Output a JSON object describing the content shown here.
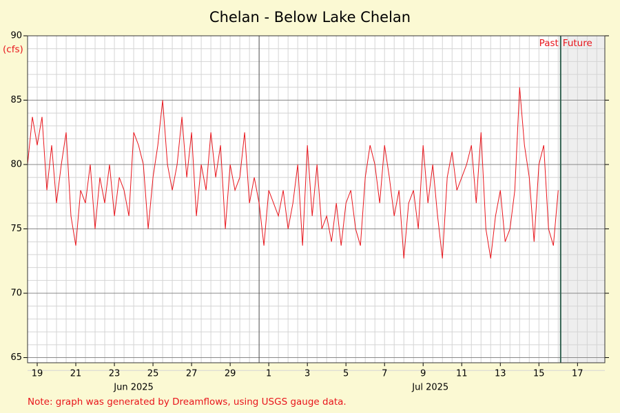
{
  "chart_data": {
    "type": "line",
    "title": "Chelan - Below Lake Chelan",
    "y_unit": "(cfs)",
    "color": "#e8141b",
    "grid": true,
    "ylim": [
      64.6,
      90
    ],
    "yticks": [
      65,
      70,
      75,
      80,
      85,
      90
    ],
    "xlim": [
      "2025-06-19T00:00",
      "2025-07-18T22:00"
    ],
    "xticks": [
      {
        "value": "2025-06-19T12:00",
        "label": "19"
      },
      {
        "value": "2025-06-21T12:00",
        "label": "21"
      },
      {
        "value": "2025-06-23T12:00",
        "label": "23"
      },
      {
        "value": "2025-06-25T12:00",
        "label": "25"
      },
      {
        "value": "2025-06-27T12:00",
        "label": "27"
      },
      {
        "value": "2025-06-29T12:00",
        "label": "29"
      },
      {
        "value": "2025-07-01T12:00",
        "label": "1"
      },
      {
        "value": "2025-07-03T12:00",
        "label": "3"
      },
      {
        "value": "2025-07-05T12:00",
        "label": "5"
      },
      {
        "value": "2025-07-07T12:00",
        "label": "7"
      },
      {
        "value": "2025-07-09T12:00",
        "label": "9"
      },
      {
        "value": "2025-07-11T12:00",
        "label": "11"
      },
      {
        "value": "2025-07-13T12:00",
        "label": "13"
      },
      {
        "value": "2025-07-15T12:00",
        "label": "15"
      },
      {
        "value": "2025-07-17T12:00",
        "label": "17"
      }
    ],
    "month_labels": [
      {
        "value": "2025-06-24T12:00",
        "label": "Jun 2025"
      },
      {
        "value": "2025-07-09T21:00",
        "label": "Jul 2025"
      }
    ],
    "month_start": "2025-07-01T00:00",
    "now": "2025-07-16T15:00",
    "past_label": "Past",
    "future_label": "Future",
    "note": "Note: graph was generated by Dreamflows, using USGS gauge data.",
    "x": [
      "2025-06-19T00:00",
      "2025-06-19T06:00",
      "2025-06-19T12:00",
      "2025-06-19T18:00",
      "2025-06-20T00:00",
      "2025-06-20T06:00",
      "2025-06-20T12:00",
      "2025-06-20T18:00",
      "2025-06-21T00:00",
      "2025-06-21T06:00",
      "2025-06-21T12:00",
      "2025-06-21T18:00",
      "2025-06-22T00:00",
      "2025-06-22T06:00",
      "2025-06-22T12:00",
      "2025-06-22T18:00",
      "2025-06-23T00:00",
      "2025-06-23T06:00",
      "2025-06-23T12:00",
      "2025-06-23T18:00",
      "2025-06-24T00:00",
      "2025-06-24T06:00",
      "2025-06-24T12:00",
      "2025-06-24T18:00",
      "2025-06-25T00:00",
      "2025-06-25T06:00",
      "2025-06-25T12:00",
      "2025-06-25T18:00",
      "2025-06-26T00:00",
      "2025-06-26T06:00",
      "2025-06-26T12:00",
      "2025-06-26T18:00",
      "2025-06-27T00:00",
      "2025-06-27T06:00",
      "2025-06-27T12:00",
      "2025-06-27T18:00",
      "2025-06-28T00:00",
      "2025-06-28T06:00",
      "2025-06-28T12:00",
      "2025-06-28T18:00",
      "2025-06-29T00:00",
      "2025-06-29T06:00",
      "2025-06-29T12:00",
      "2025-06-29T18:00",
      "2025-06-30T00:00",
      "2025-06-30T06:00",
      "2025-06-30T12:00",
      "2025-06-30T18:00",
      "2025-07-01T00:00",
      "2025-07-01T06:00",
      "2025-07-01T12:00",
      "2025-07-01T18:00",
      "2025-07-02T00:00",
      "2025-07-02T06:00",
      "2025-07-02T12:00",
      "2025-07-02T18:00",
      "2025-07-03T00:00",
      "2025-07-03T06:00",
      "2025-07-03T12:00",
      "2025-07-03T18:00",
      "2025-07-04T00:00",
      "2025-07-04T06:00",
      "2025-07-04T12:00",
      "2025-07-04T18:00",
      "2025-07-05T00:00",
      "2025-07-05T06:00",
      "2025-07-05T12:00",
      "2025-07-05T18:00",
      "2025-07-06T00:00",
      "2025-07-06T06:00",
      "2025-07-06T12:00",
      "2025-07-06T18:00",
      "2025-07-07T00:00",
      "2025-07-07T06:00",
      "2025-07-07T12:00",
      "2025-07-07T18:00",
      "2025-07-08T00:00",
      "2025-07-08T06:00",
      "2025-07-08T12:00",
      "2025-07-08T18:00",
      "2025-07-09T00:00",
      "2025-07-09T06:00",
      "2025-07-09T12:00",
      "2025-07-09T18:00",
      "2025-07-10T00:00",
      "2025-07-10T06:00",
      "2025-07-10T12:00",
      "2025-07-10T18:00",
      "2025-07-11T00:00",
      "2025-07-11T06:00",
      "2025-07-11T12:00",
      "2025-07-11T18:00",
      "2025-07-12T00:00",
      "2025-07-12T06:00",
      "2025-07-12T12:00",
      "2025-07-12T18:00",
      "2025-07-13T00:00",
      "2025-07-13T06:00",
      "2025-07-13T12:00",
      "2025-07-13T18:00",
      "2025-07-14T00:00",
      "2025-07-14T06:00",
      "2025-07-14T12:00",
      "2025-07-14T18:00",
      "2025-07-15T00:00",
      "2025-07-15T06:00",
      "2025-07-15T12:00",
      "2025-07-15T18:00",
      "2025-07-16T00:00",
      "2025-07-16T06:00",
      "2025-07-16T12:00"
    ],
    "values": [
      80,
      83.7,
      81.5,
      83.7,
      78,
      81.5,
      77,
      80,
      82.5,
      76,
      73.7,
      78,
      77,
      80,
      75,
      79,
      77,
      80,
      76,
      79,
      78,
      76,
      82.5,
      81.5,
      80,
      75,
      79,
      81.5,
      85,
      80,
      78,
      80,
      83.7,
      79,
      82.5,
      76,
      80,
      78,
      82.5,
      79,
      81.5,
      75,
      80,
      78,
      79,
      82.5,
      77,
      79,
      77,
      73.7,
      78,
      77,
      76,
      78,
      75,
      77,
      80,
      73.7,
      81.5,
      76,
      80,
      75,
      76,
      74,
      77,
      73.7,
      77,
      78,
      75,
      73.7,
      79,
      81.5,
      80,
      77,
      81.5,
      79,
      76,
      78,
      72.7,
      77,
      78,
      75,
      81.5,
      77,
      80,
      76,
      72.7,
      79,
      81,
      78,
      79,
      80,
      81.5,
      77,
      82.5,
      75,
      72.7,
      76,
      78,
      74,
      75,
      78,
      86,
      81.5,
      79,
      74,
      80,
      81.5,
      75,
      73.7,
      78
    ]
  }
}
